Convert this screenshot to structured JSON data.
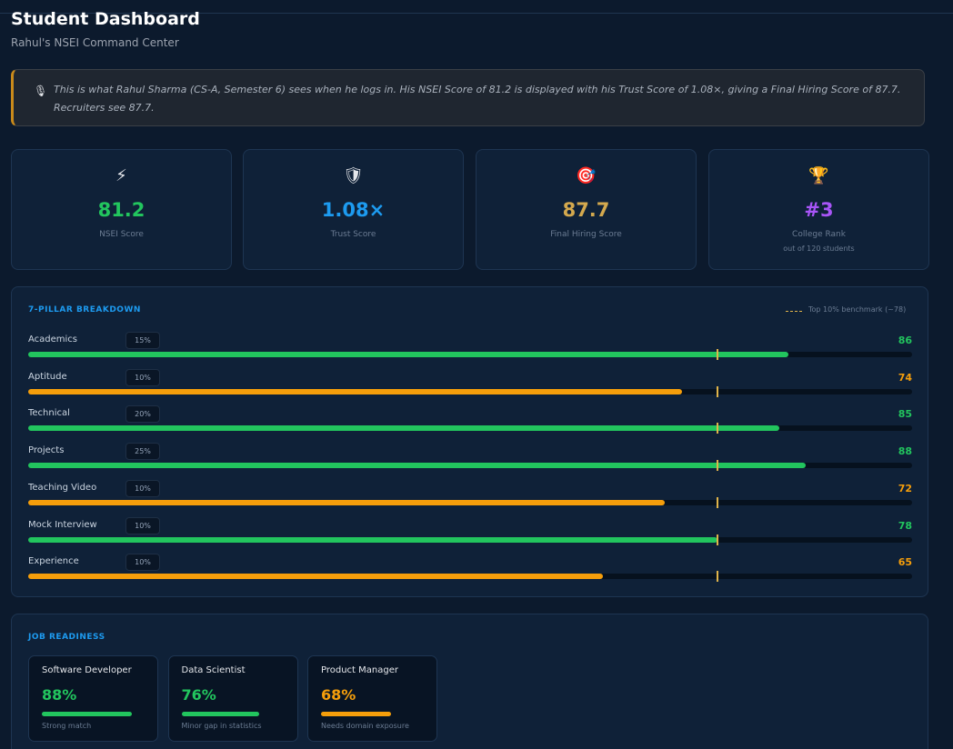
{
  "header": {
    "title": "Student Dashboard",
    "subtitle": "Rahul's NSEI Command Center"
  },
  "note": {
    "icon": "🎙",
    "text": "This is what Rahul Sharma (CS-A, Semester 6) sees when he logs in. His NSEI Score of 81.2 is displayed with his Trust Score of 1.08×, giving a Final Hiring Score of 87.7. Recruiters see 87.7."
  },
  "stats": [
    {
      "icon": "⚡",
      "value": "81.2",
      "label": "NSEI Score",
      "color": "#22c55e"
    },
    {
      "icon": "🛡",
      "value": "1.08×",
      "label": "Trust Score",
      "color": "#1d9bf0"
    },
    {
      "icon": "🎯",
      "value": "87.7",
      "label": "Final Hiring Score",
      "color": "#d4a94e"
    },
    {
      "icon": "🏆",
      "value": "#3",
      "label": "College Rank",
      "sublabel": "out of 120 students",
      "color": "#a855f7"
    }
  ],
  "pillars": {
    "title": "7-PILLAR BREAKDOWN",
    "benchmark_label": "Top 10% benchmark (~78)",
    "benchmark": 78,
    "max": 100,
    "rows": [
      {
        "name": "Academics",
        "weight": "15%",
        "score": 86,
        "color": "#22c55e"
      },
      {
        "name": "Aptitude",
        "weight": "10%",
        "score": 74,
        "color": "#f59e0b"
      },
      {
        "name": "Technical",
        "weight": "20%",
        "score": 85,
        "color": "#22c55e"
      },
      {
        "name": "Projects",
        "weight": "25%",
        "score": 88,
        "color": "#22c55e"
      },
      {
        "name": "Teaching Video",
        "weight": "10%",
        "score": 72,
        "color": "#f59e0b"
      },
      {
        "name": "Mock Interview",
        "weight": "10%",
        "score": 78,
        "color": "#22c55e"
      },
      {
        "name": "Experience",
        "weight": "10%",
        "score": 65,
        "color": "#f59e0b"
      }
    ]
  },
  "job_readiness": {
    "title": "JOB READINESS",
    "max": 100,
    "roles": [
      {
        "role": "Software Developer",
        "match": 88,
        "match_label": "88%",
        "note": "Strong match",
        "color": "#22c55e"
      },
      {
        "role": "Data Scientist",
        "match": 76,
        "match_label": "76%",
        "note": "Minor gap in statistics",
        "color": "#22c55e"
      },
      {
        "role": "Product Manager",
        "match": 68,
        "match_label": "68%",
        "note": "Needs domain exposure",
        "color": "#f59e0b"
      }
    ]
  }
}
